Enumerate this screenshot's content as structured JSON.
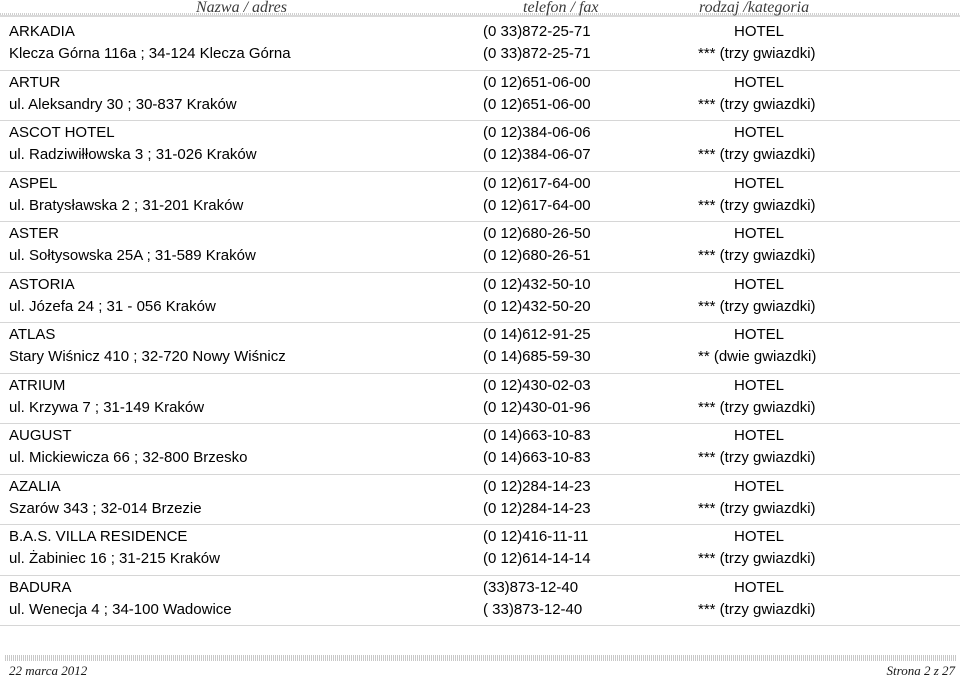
{
  "header": {
    "col_name": "Nazwa / adres",
    "col_phone": "telefon / fax",
    "col_category": "rodzaj /kategoria"
  },
  "entries": [
    {
      "name": "ARKADIA",
      "address": "Klecza Górna 116a ; 34-124 Klecza Górna",
      "phone": "(0 33)872-25-71",
      "fax": "(0 33)872-25-71",
      "type": "HOTEL",
      "category": "*** (trzy gwiazdki)"
    },
    {
      "name": "ARTUR",
      "address": "ul. Aleksandry 30 ; 30-837 Kraków",
      "phone": "(0 12)651-06-00",
      "fax": "(0 12)651-06-00",
      "type": "HOTEL",
      "category": "*** (trzy gwiazdki)"
    },
    {
      "name": "ASCOT HOTEL",
      "address": "ul. Radziwiłłowska 3 ; 31-026 Kraków",
      "phone": "(0 12)384-06-06",
      "fax": "(0 12)384-06-07",
      "type": "HOTEL",
      "category": "*** (trzy gwiazdki)"
    },
    {
      "name": "ASPEL",
      "address": "ul. Bratysławska 2 ; 31-201 Kraków",
      "phone": "(0 12)617-64-00",
      "fax": "(0 12)617-64-00",
      "type": "HOTEL",
      "category": "*** (trzy gwiazdki)"
    },
    {
      "name": "ASTER",
      "address": "ul. Sołtysowska 25A ; 31-589 Kraków",
      "phone": "(0 12)680-26-50",
      "fax": "(0 12)680-26-51",
      "type": "HOTEL",
      "category": "*** (trzy gwiazdki)"
    },
    {
      "name": "ASTORIA",
      "address": "ul. Józefa 24 ; 31 - 056 Kraków",
      "phone": "(0 12)432-50-10",
      "fax": "(0 12)432-50-20",
      "type": "HOTEL",
      "category": "*** (trzy gwiazdki)"
    },
    {
      "name": "ATLAS",
      "address": "Stary Wiśnicz 410 ; 32-720 Nowy Wiśnicz",
      "phone": "(0 14)612-91-25",
      "fax": "(0 14)685-59-30",
      "type": "HOTEL",
      "category": "** (dwie gwiazdki)"
    },
    {
      "name": "ATRIUM",
      "address": "ul. Krzywa 7 ; 31-149 Kraków",
      "phone": "(0 12)430-02-03",
      "fax": "(0 12)430-01-96",
      "type": "HOTEL",
      "category": "*** (trzy gwiazdki)"
    },
    {
      "name": "AUGUST",
      "address": "ul. Mickiewicza 66 ; 32-800 Brzesko",
      "phone": "(0 14)663-10-83",
      "fax": "(0 14)663-10-83",
      "type": "HOTEL",
      "category": "*** (trzy gwiazdki)"
    },
    {
      "name": "AZALIA",
      "address": "Szarów 343 ; 32-014 Brzezie",
      "phone": "(0 12)284-14-23",
      "fax": "(0 12)284-14-23",
      "type": "HOTEL",
      "category": "*** (trzy gwiazdki)"
    },
    {
      "name": "B.A.S. VILLA RESIDENCE",
      "address": "ul. Żabiniec 16 ; 31-215 Kraków",
      "phone": "(0 12)416-11-11",
      "fax": "(0 12)614-14-14",
      "type": "HOTEL",
      "category": "*** (trzy gwiazdki)"
    },
    {
      "name": "BADURA",
      "address": "ul. Wenecja 4 ; 34-100 Wadowice",
      "phone": "(33)873-12-40",
      "fax": "( 33)873-12-40",
      "type": "HOTEL",
      "category": "*** (trzy gwiazdki)"
    }
  ],
  "footer": {
    "date": "22 marca 2012",
    "page": "Strona 2 z 27"
  }
}
